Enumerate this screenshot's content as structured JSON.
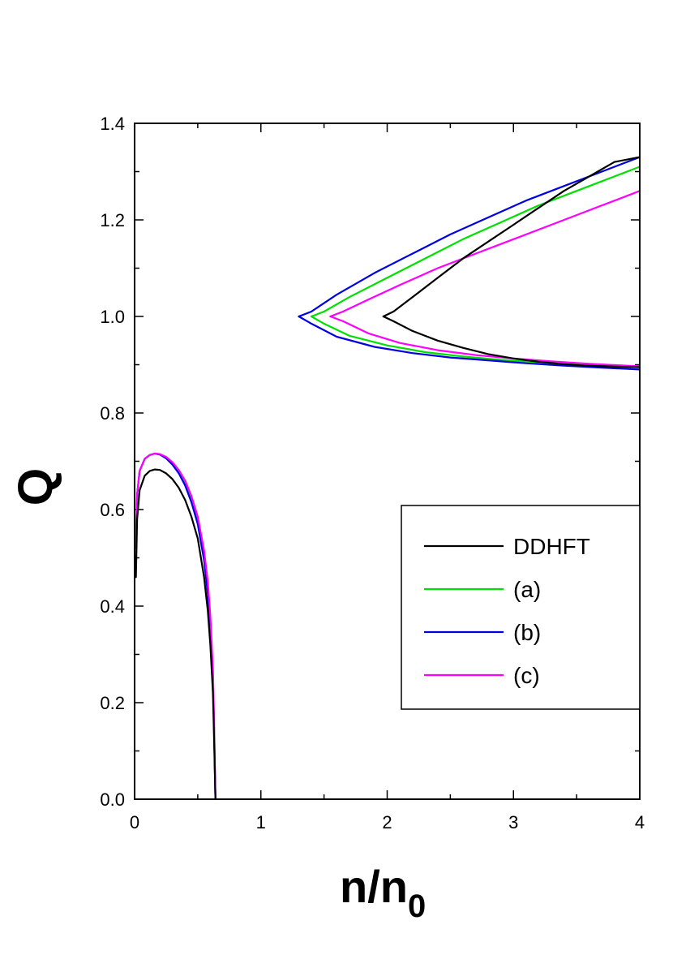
{
  "chart_data": {
    "type": "line",
    "xlabel": "n/n",
    "xlabel_subscript": "0",
    "ylabel": "Q",
    "xlim": [
      0,
      4
    ],
    "ylim": [
      0,
      1.4
    ],
    "x_ticks": [
      0,
      1,
      2,
      3,
      4
    ],
    "x_tick_labels": [
      "0",
      "1",
      "2",
      "3",
      "4"
    ],
    "y_ticks": [
      0.0,
      0.2,
      0.4,
      0.6,
      0.8,
      1.0,
      1.2,
      1.4
    ],
    "y_tick_labels": [
      "0.0",
      "0.2",
      "0.4",
      "0.6",
      "0.8",
      "1.0",
      "1.2",
      "1.4"
    ],
    "grid": false,
    "legend_position": "center-right",
    "legend": [
      "DDHFT",
      "(a)",
      "(b)",
      "(c)"
    ],
    "series": [
      {
        "name": "DDHFT",
        "color": "#000000",
        "low_density_branch": {
          "x": [
            0.01,
            0.02,
            0.04,
            0.08,
            0.12,
            0.16,
            0.2,
            0.25,
            0.3,
            0.35,
            0.4,
            0.45,
            0.5,
            0.55,
            0.58,
            0.6,
            0.62,
            0.63,
            0.64
          ],
          "y": [
            0.46,
            0.58,
            0.64,
            0.67,
            0.68,
            0.683,
            0.682,
            0.675,
            0.663,
            0.645,
            0.62,
            0.585,
            0.54,
            0.46,
            0.39,
            0.32,
            0.22,
            0.12,
            0.0
          ]
        },
        "upper_branch": {
          "x": [
            1.97,
            2.05,
            2.2,
            2.4,
            2.6,
            2.8,
            3.0,
            3.2,
            3.4,
            3.6,
            3.8,
            4.0
          ],
          "y": [
            1.0,
            1.01,
            1.04,
            1.08,
            1.12,
            1.155,
            1.19,
            1.225,
            1.26,
            1.29,
            1.32,
            1.33
          ]
        },
        "lower_branch": {
          "x": [
            1.97,
            2.05,
            2.2,
            2.4,
            2.6,
            2.8,
            3.0,
            3.2,
            3.4,
            3.6,
            3.8,
            4.0
          ],
          "y": [
            1.0,
            0.99,
            0.97,
            0.95,
            0.935,
            0.922,
            0.913,
            0.906,
            0.901,
            0.898,
            0.896,
            0.895
          ]
        }
      },
      {
        "name": "(a)",
        "color": "#00e000",
        "low_density_branch": {
          "x": [
            0.01,
            0.02,
            0.04,
            0.08,
            0.12,
            0.16,
            0.2,
            0.25,
            0.3,
            0.35,
            0.4,
            0.45,
            0.5,
            0.55,
            0.58,
            0.6,
            0.62,
            0.63,
            0.64
          ],
          "y": [
            0.52,
            0.63,
            0.68,
            0.705,
            0.713,
            0.716,
            0.714,
            0.707,
            0.695,
            0.678,
            0.655,
            0.62,
            0.575,
            0.5,
            0.43,
            0.36,
            0.25,
            0.14,
            0.0
          ]
        },
        "upper_branch": {
          "x": [
            1.4,
            1.5,
            1.7,
            2.0,
            2.3,
            2.6,
            2.9,
            3.2,
            3.5,
            3.8,
            4.0
          ],
          "y": [
            1.0,
            1.01,
            1.04,
            1.08,
            1.12,
            1.16,
            1.195,
            1.23,
            1.26,
            1.29,
            1.31
          ]
        },
        "lower_branch": {
          "x": [
            1.4,
            1.5,
            1.7,
            2.0,
            2.3,
            2.6,
            2.9,
            3.2,
            3.5,
            3.8,
            4.0
          ],
          "y": [
            1.0,
            0.985,
            0.96,
            0.94,
            0.926,
            0.917,
            0.91,
            0.905,
            0.9,
            0.897,
            0.895
          ]
        }
      },
      {
        "name": "(b)",
        "color": "#0000e0",
        "low_density_branch": {
          "x": [
            0.01,
            0.02,
            0.04,
            0.08,
            0.12,
            0.16,
            0.2,
            0.25,
            0.3,
            0.35,
            0.4,
            0.45,
            0.5,
            0.55,
            0.58,
            0.6,
            0.62,
            0.63,
            0.64
          ],
          "y": [
            0.52,
            0.63,
            0.68,
            0.705,
            0.713,
            0.716,
            0.714,
            0.706,
            0.693,
            0.675,
            0.65,
            0.615,
            0.57,
            0.495,
            0.425,
            0.355,
            0.245,
            0.135,
            0.0
          ]
        },
        "upper_branch": {
          "x": [
            1.3,
            1.4,
            1.6,
            1.9,
            2.2,
            2.5,
            2.8,
            3.1,
            3.4,
            3.7,
            4.0
          ],
          "y": [
            1.0,
            1.01,
            1.045,
            1.09,
            1.13,
            1.17,
            1.205,
            1.24,
            1.27,
            1.3,
            1.33
          ]
        },
        "lower_branch": {
          "x": [
            1.3,
            1.4,
            1.6,
            1.9,
            2.2,
            2.5,
            2.8,
            3.1,
            3.4,
            3.7,
            4.0
          ],
          "y": [
            1.0,
            0.985,
            0.958,
            0.937,
            0.924,
            0.915,
            0.909,
            0.903,
            0.898,
            0.894,
            0.89
          ]
        }
      },
      {
        "name": "(c)",
        "color": "#ff00ff",
        "low_density_branch": {
          "x": [
            0.01,
            0.02,
            0.04,
            0.08,
            0.12,
            0.16,
            0.2,
            0.25,
            0.3,
            0.35,
            0.4,
            0.45,
            0.5,
            0.55,
            0.58,
            0.6,
            0.62,
            0.63,
            0.64
          ],
          "y": [
            0.52,
            0.63,
            0.68,
            0.705,
            0.713,
            0.716,
            0.715,
            0.709,
            0.698,
            0.682,
            0.66,
            0.628,
            0.585,
            0.515,
            0.45,
            0.38,
            0.27,
            0.16,
            0.0
          ]
        },
        "upper_branch": {
          "x": [
            1.55,
            1.65,
            1.85,
            2.1,
            2.4,
            2.7,
            3.0,
            3.3,
            3.6,
            3.9,
            4.0
          ],
          "y": [
            1.0,
            1.01,
            1.035,
            1.065,
            1.1,
            1.13,
            1.16,
            1.19,
            1.22,
            1.25,
            1.26
          ]
        },
        "lower_branch": {
          "x": [
            1.55,
            1.65,
            1.85,
            2.1,
            2.4,
            2.7,
            3.0,
            3.3,
            3.6,
            3.9,
            4.0
          ],
          "y": [
            1.0,
            0.99,
            0.965,
            0.945,
            0.93,
            0.92,
            0.913,
            0.907,
            0.902,
            0.898,
            0.897
          ]
        }
      }
    ]
  }
}
